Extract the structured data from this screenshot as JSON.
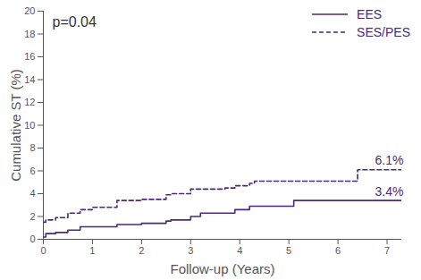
{
  "chart_data": {
    "type": "line",
    "xlabel": "Follow-up (Years)",
    "ylabel": "Cumulative ST (%)",
    "x": [
      0,
      0.05,
      0.25,
      0.5,
      0.75,
      1,
      1.5,
      2,
      2.5,
      2.6,
      3,
      3.2,
      3.7,
      3.9,
      4.2,
      4.3,
      5.1,
      6.4,
      7.3
    ],
    "series": [
      {
        "name": "EES",
        "color": "#4b2a7b",
        "line_style": "solid",
        "values": [
          0.2,
          0.5,
          0.6,
          0.8,
          1.1,
          1.1,
          1.3,
          1.4,
          1.6,
          1.7,
          2.0,
          2.3,
          2.3,
          2.6,
          2.9,
          2.9,
          3.4,
          3.4,
          3.4
        ]
      },
      {
        "name": "SES/PES",
        "color": "#4b2a7b",
        "line_style": "dashed",
        "values": [
          1.5,
          1.7,
          1.9,
          2.3,
          2.6,
          2.8,
          3.4,
          3.5,
          3.9,
          4.0,
          4.4,
          4.4,
          4.5,
          4.7,
          4.9,
          5.1,
          5.1,
          6.1,
          6.1
        ]
      }
    ],
    "annotations": [
      {
        "text": "p=0.04",
        "x": 0,
        "y": 19
      },
      {
        "text": "6.1%",
        "x": 7.3,
        "y": 6.1
      },
      {
        "text": "3.4%",
        "x": 7.3,
        "y": 3.4
      }
    ],
    "xlim": [
      0,
      7.3
    ],
    "xticks": [
      0,
      1,
      2,
      3,
      4,
      5,
      6,
      7
    ],
    "ylim": [
      0,
      20
    ],
    "yticks": [
      0,
      2,
      4,
      6,
      8,
      10,
      12,
      14,
      16,
      18,
      20
    ],
    "grid": false,
    "legend": "top-right"
  }
}
